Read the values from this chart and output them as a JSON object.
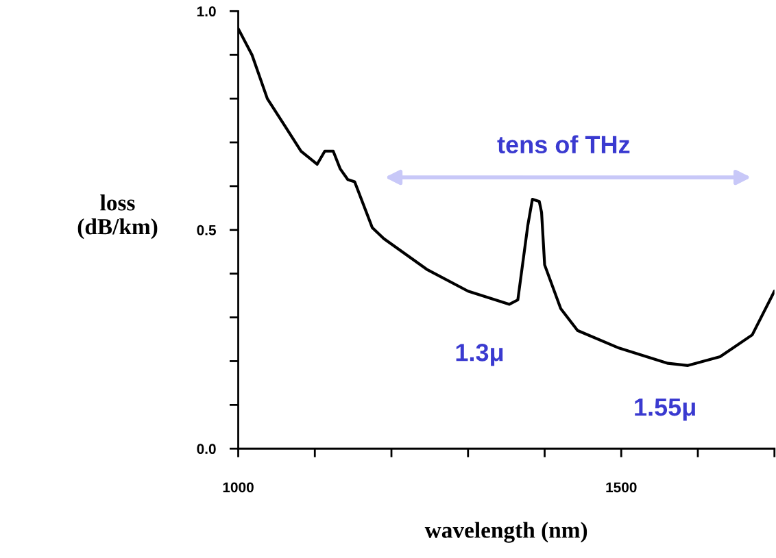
{
  "chart_data": {
    "type": "line",
    "xlabel": "wavelength (nm)",
    "ylabel": "loss\n(dB/km)",
    "x": [
      1000,
      1018,
      1038,
      1060,
      1082,
      1103,
      1113,
      1124,
      1133,
      1143,
      1152,
      1175,
      1190,
      1246,
      1300,
      1354,
      1365,
      1378,
      1384,
      1393,
      1396,
      1400,
      1421,
      1443,
      1497,
      1561,
      1587,
      1629,
      1671,
      1700
    ],
    "series": [
      {
        "color": "#000000",
        "values": [
          0.96,
          0.9,
          0.8,
          0.74,
          0.68,
          0.65,
          0.68,
          0.68,
          0.64,
          0.615,
          0.61,
          0.505,
          0.48,
          0.41,
          0.36,
          0.33,
          0.34,
          0.51,
          0.57,
          0.565,
          0.54,
          0.42,
          0.32,
          0.27,
          0.23,
          0.195,
          0.19,
          0.21,
          0.26,
          0.36
        ]
      }
    ],
    "xlim": [
      1000,
      1700
    ],
    "xticks": [
      1000,
      {
        "value": 1100,
        "label": null
      },
      {
        "value": 1200,
        "label": null
      },
      {
        "value": 1300,
        "label": null
      },
      {
        "value": 1400,
        "label": null
      },
      1500,
      {
        "value": 1600,
        "label": null
      },
      {
        "value": 1700,
        "label": null
      }
    ],
    "ylim": [
      0,
      1
    ],
    "yticks": [
      {
        "value": 0,
        "label": "0.0"
      },
      {
        "value": 0.1,
        "label": null
      },
      {
        "value": 0.2,
        "label": null
      },
      {
        "value": 0.3,
        "label": null
      },
      {
        "value": 0.4,
        "label": null
      },
      {
        "value": 0.5,
        "label": "0.5"
      },
      {
        "value": 0.6,
        "label": null
      },
      {
        "value": 0.7,
        "label": null
      },
      {
        "value": 0.8,
        "label": null
      },
      {
        "value": 0.9,
        "label": null
      },
      {
        "value": 1.0,
        "label": "1.0"
      }
    ],
    "grid": false,
    "marker": "none",
    "line_style": "solid",
    "annotations": [
      "tens of THz",
      "1.3μ",
      "1.55μ"
    ]
  }
}
